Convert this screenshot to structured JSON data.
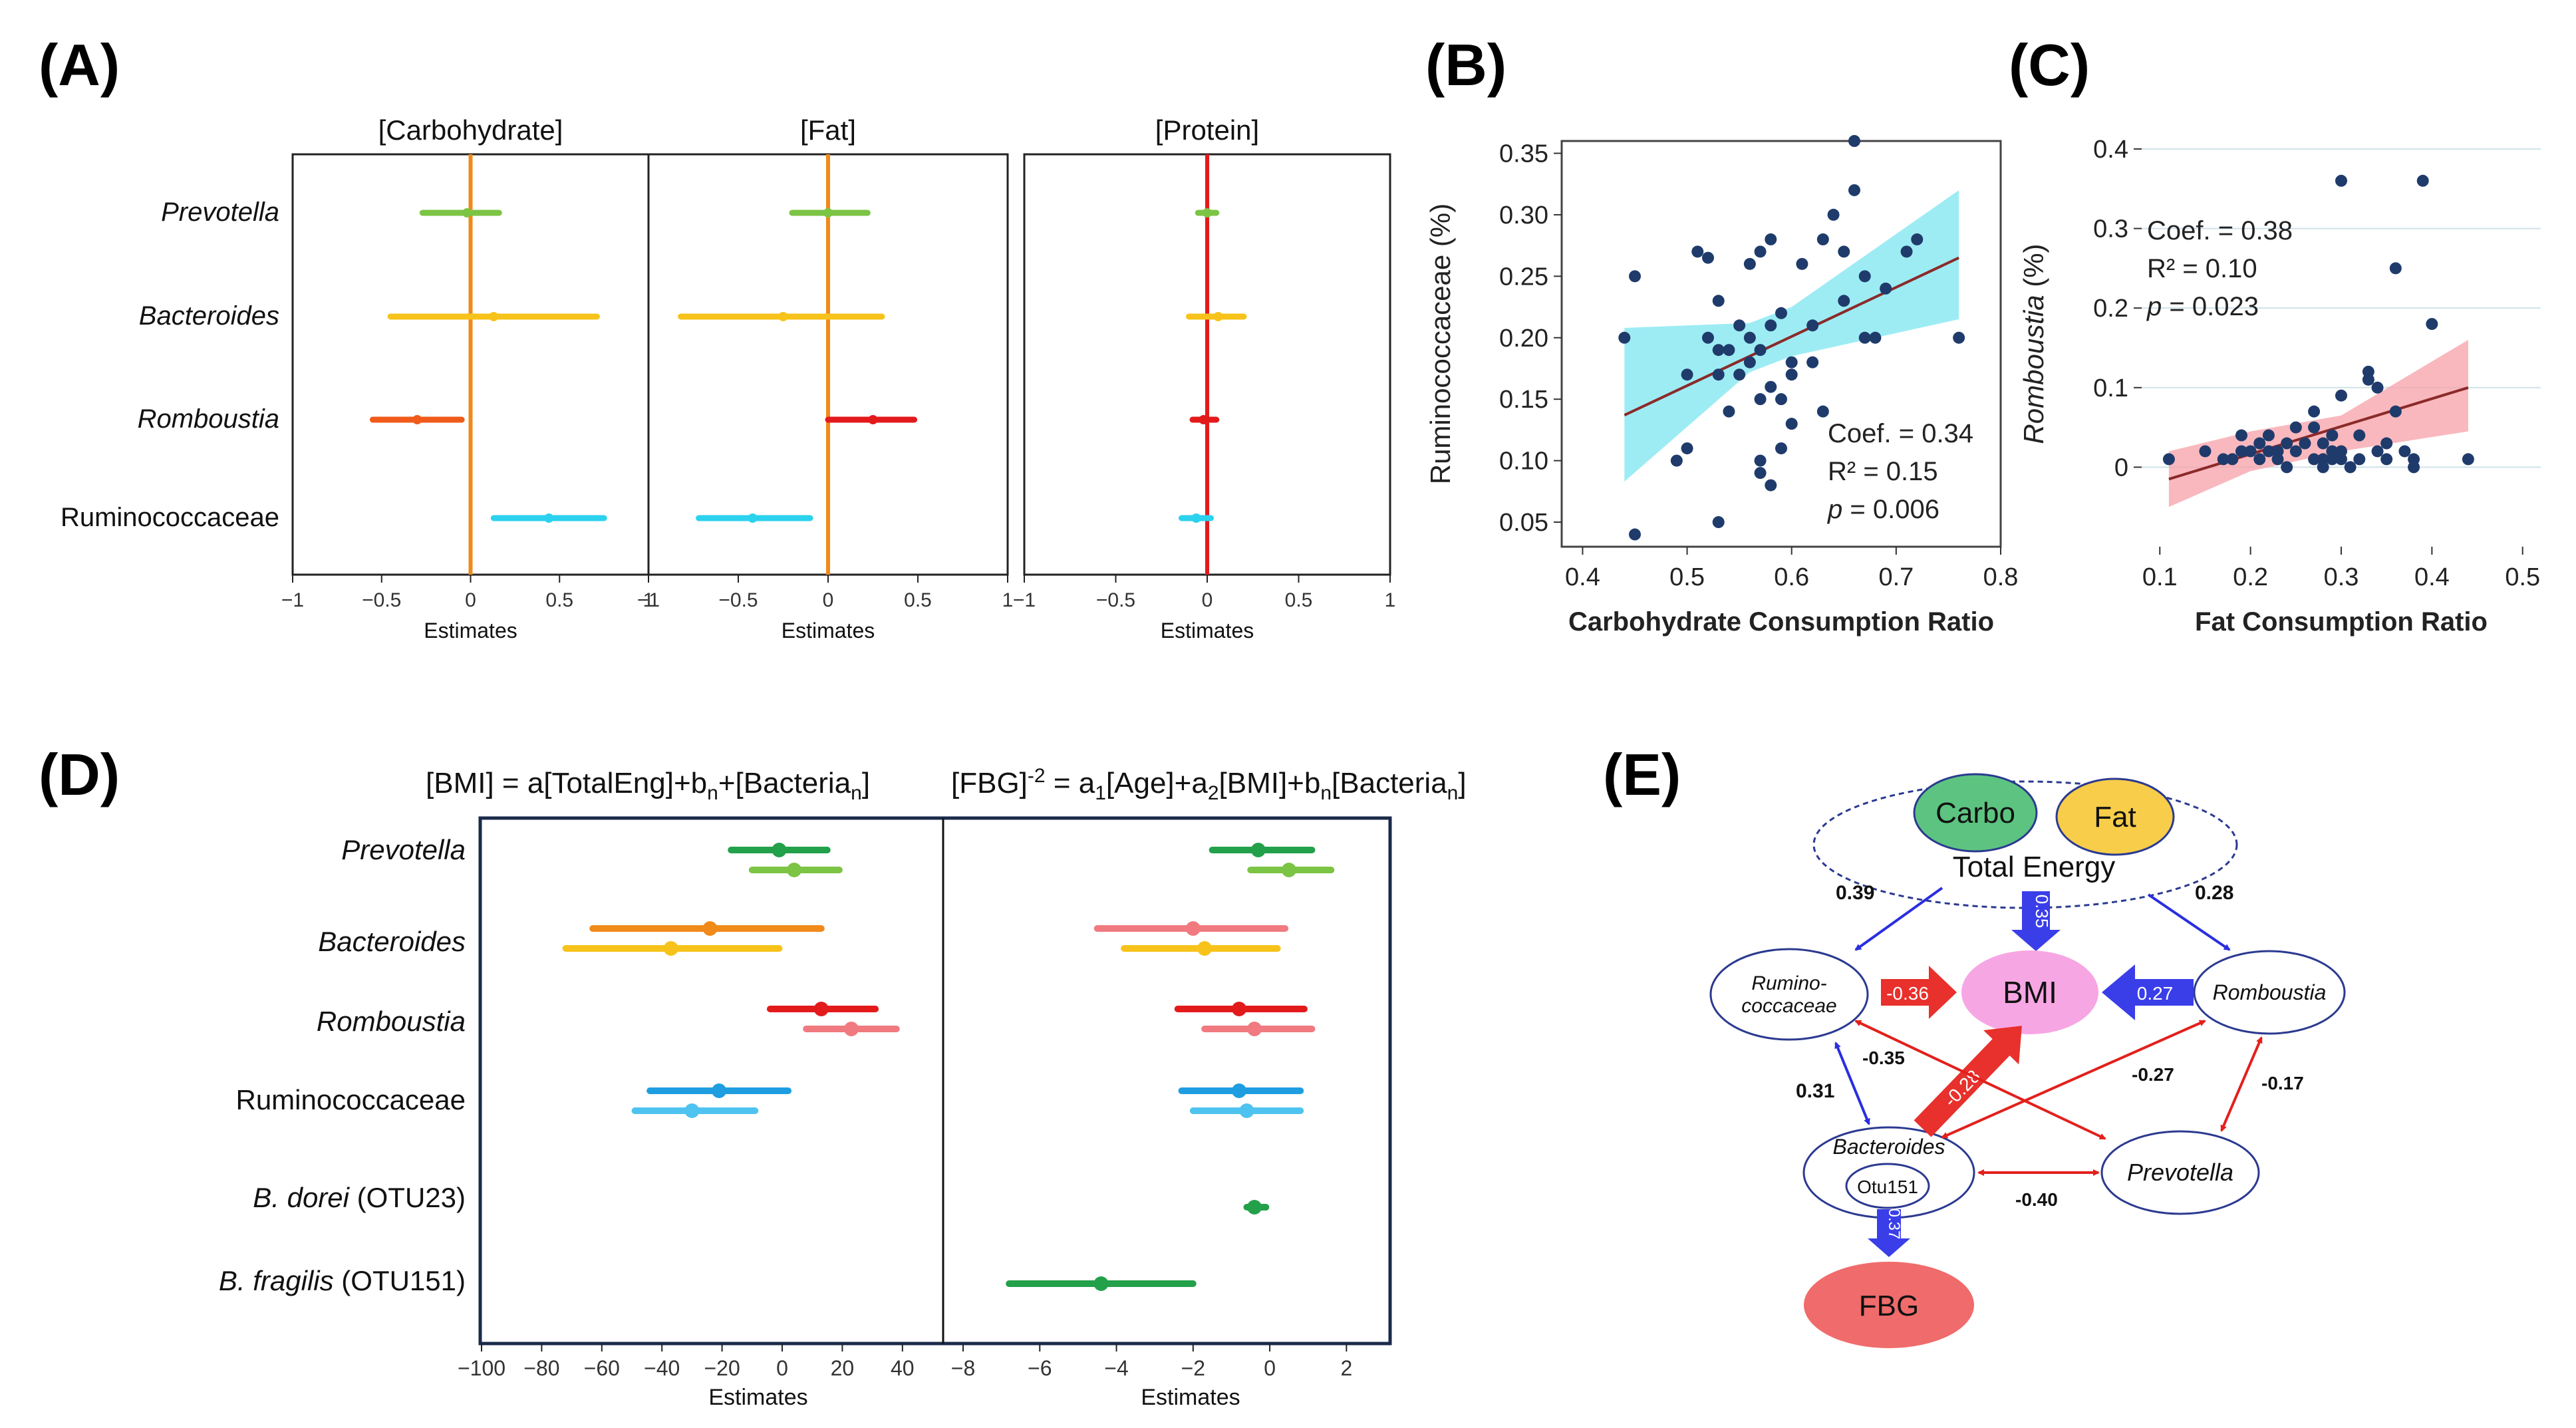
{
  "colors": {
    "green": "#23a04a",
    "lightgreen": "#7cc444",
    "orange": "#f08a1a",
    "gold": "#f7c31a",
    "red": "#e31a1c",
    "pink": "#f07a80",
    "blue": "#1e9ee0",
    "cyan": "#2ad2ee",
    "navy": "#1f3b6b",
    "arrow_blue": "#3a3ee8",
    "arrow_red": "#e8302c",
    "bmi_pink": "#f7a6e4",
    "carbo_green": "#5cc480",
    "fat_yellow": "#f7cd4a",
    "fbg_red": "#f06b6b"
  },
  "panels": {
    "a": "(A)",
    "b": "(B)",
    "c": "(C)",
    "d": "(D)",
    "e": "(E)"
  },
  "chart_data": [
    {
      "panel": "A",
      "type": "forest",
      "xlabel": "Estimates",
      "xlim": [
        -1,
        1
      ],
      "xticks": [
        "−1",
        "−0.5",
        "0",
        "0.5",
        "1"
      ],
      "categories": [
        "Prevotella",
        "Bacteroides",
        "Romboustia",
        "Ruminococcaceae"
      ],
      "subplots": [
        {
          "title": "[Carbohydrate]",
          "line_color": "#f08a1a",
          "rows": [
            {
              "est": -0.02,
              "lo": -0.27,
              "hi": 0.16,
              "color": "#7cc444"
            },
            {
              "est": 0.13,
              "lo": -0.45,
              "hi": 0.71,
              "color": "#f7c31a"
            },
            {
              "est": -0.3,
              "lo": -0.55,
              "hi": -0.05,
              "color": "#f05a1a"
            },
            {
              "est": 0.44,
              "lo": 0.13,
              "hi": 0.75,
              "color": "#2ad2ee"
            }
          ]
        },
        {
          "title": "[Fat]",
          "line_color": "#f08a1a",
          "rows": [
            {
              "est": 0.0,
              "lo": -0.2,
              "hi": 0.22,
              "color": "#7cc444"
            },
            {
              "est": -0.25,
              "lo": -0.82,
              "hi": 0.3,
              "color": "#f7c31a"
            },
            {
              "est": 0.25,
              "lo": 0.0,
              "hi": 0.48,
              "color": "#e31a1c"
            },
            {
              "est": -0.42,
              "lo": -0.72,
              "hi": -0.1,
              "color": "#2ad2ee"
            }
          ]
        },
        {
          "title": "[Protein]",
          "line_color": "#e31a1c",
          "rows": [
            {
              "est": 0.0,
              "lo": -0.05,
              "hi": 0.05,
              "color": "#7cc444"
            },
            {
              "est": 0.06,
              "lo": -0.1,
              "hi": 0.2,
              "color": "#f7c31a"
            },
            {
              "est": -0.02,
              "lo": -0.08,
              "hi": 0.05,
              "color": "#e31a1c"
            },
            {
              "est": -0.06,
              "lo": -0.14,
              "hi": 0.02,
              "color": "#2ad2ee"
            }
          ]
        }
      ]
    },
    {
      "panel": "B",
      "type": "scatter",
      "xlabel": "Carbohydrate Consumption Ratio",
      "ylabel": "Ruminococcaceae (%)",
      "xlim": [
        0.38,
        0.8
      ],
      "ylim": [
        0.03,
        0.36
      ],
      "xticks": [
        0.4,
        0.5,
        0.6,
        0.7,
        0.8
      ],
      "xtick_labels": [
        "0.4",
        "0.5",
        "0.6",
        "0.7",
        "0.8"
      ],
      "yticks": [
        0.05,
        0.1,
        0.15,
        0.2,
        0.25,
        0.3,
        0.35
      ],
      "ytick_labels": [
        "0.05",
        "0.10",
        "0.15",
        "0.20",
        "0.25",
        "0.30",
        "0.35"
      ],
      "fit": {
        "x": [
          0.44,
          0.76
        ],
        "y": [
          0.137,
          0.265
        ]
      },
      "band": {
        "x": [
          0.44,
          0.56,
          0.6,
          0.76
        ],
        "upper": [
          0.208,
          0.212,
          0.225,
          0.32
        ],
        "lower": [
          0.083,
          0.172,
          0.185,
          0.215
        ]
      },
      "annotations": [
        "Coef. = 0.34",
        "R² = 0.15",
        "p = 0.006"
      ],
      "points": [
        [
          0.44,
          0.2
        ],
        [
          0.45,
          0.04
        ],
        [
          0.45,
          0.25
        ],
        [
          0.49,
          0.1
        ],
        [
          0.5,
          0.11
        ],
        [
          0.5,
          0.17
        ],
        [
          0.51,
          0.27
        ],
        [
          0.52,
          0.265
        ],
        [
          0.52,
          0.2
        ],
        [
          0.53,
          0.05
        ],
        [
          0.53,
          0.17
        ],
        [
          0.53,
          0.23
        ],
        [
          0.53,
          0.19
        ],
        [
          0.54,
          0.19
        ],
        [
          0.54,
          0.14
        ],
        [
          0.55,
          0.21
        ],
        [
          0.55,
          0.17
        ],
        [
          0.56,
          0.18
        ],
        [
          0.56,
          0.2
        ],
        [
          0.56,
          0.26
        ],
        [
          0.57,
          0.19
        ],
        [
          0.57,
          0.15
        ],
        [
          0.57,
          0.1
        ],
        [
          0.57,
          0.09
        ],
        [
          0.57,
          0.27
        ],
        [
          0.58,
          0.28
        ],
        [
          0.58,
          0.08
        ],
        [
          0.58,
          0.21
        ],
        [
          0.58,
          0.16
        ],
        [
          0.59,
          0.11
        ],
        [
          0.59,
          0.15
        ],
        [
          0.59,
          0.22
        ],
        [
          0.6,
          0.18
        ],
        [
          0.6,
          0.17
        ],
        [
          0.6,
          0.13
        ],
        [
          0.61,
          0.26
        ],
        [
          0.62,
          0.18
        ],
        [
          0.62,
          0.21
        ],
        [
          0.63,
          0.28
        ],
        [
          0.63,
          0.14
        ],
        [
          0.64,
          0.3
        ],
        [
          0.65,
          0.27
        ],
        [
          0.65,
          0.23
        ],
        [
          0.66,
          0.32
        ],
        [
          0.66,
          0.36
        ],
        [
          0.67,
          0.2
        ],
        [
          0.67,
          0.25
        ],
        [
          0.68,
          0.2
        ],
        [
          0.69,
          0.24
        ],
        [
          0.71,
          0.27
        ],
        [
          0.72,
          0.28
        ],
        [
          0.76,
          0.2
        ]
      ]
    },
    {
      "panel": "C",
      "type": "scatter",
      "xlabel": "Fat Consumption Ratio",
      "ylabel": "Romboustia (%)",
      "xlim": [
        0.08,
        0.52
      ],
      "ylim": [
        -0.1,
        0.41
      ],
      "xticks": [
        0.1,
        0.2,
        0.3,
        0.4,
        0.5
      ],
      "xtick_labels": [
        "0.1",
        "0.2",
        "0.3",
        "0.4",
        "0.5"
      ],
      "yticks": [
        0,
        0.1,
        0.2,
        0.3,
        0.4
      ],
      "ytick_labels": [
        "0",
        "0.1",
        "0.2",
        "0.3",
        "0.4"
      ],
      "fit": {
        "x": [
          0.11,
          0.44
        ],
        "y": [
          -0.015,
          0.1
        ]
      },
      "band": {
        "x": [
          0.11,
          0.2,
          0.3,
          0.44
        ],
        "upper": [
          0.02,
          0.045,
          0.065,
          0.16
        ],
        "lower": [
          -0.05,
          -0.005,
          0.02,
          0.045
        ]
      },
      "annotations": [
        "Coef. = 0.38",
        "R² = 0.10",
        "p = 0.023"
      ],
      "points": [
        [
          0.11,
          0.01
        ],
        [
          0.15,
          0.02
        ],
        [
          0.17,
          0.01
        ],
        [
          0.18,
          0.01
        ],
        [
          0.19,
          0.04
        ],
        [
          0.19,
          0.02
        ],
        [
          0.2,
          0.02
        ],
        [
          0.21,
          0.03
        ],
        [
          0.21,
          0.01
        ],
        [
          0.22,
          0.04
        ],
        [
          0.22,
          0.02
        ],
        [
          0.23,
          0.01
        ],
        [
          0.23,
          0.02
        ],
        [
          0.24,
          0.03
        ],
        [
          0.24,
          0.0
        ],
        [
          0.25,
          0.05
        ],
        [
          0.25,
          0.02
        ],
        [
          0.26,
          0.03
        ],
        [
          0.27,
          0.05
        ],
        [
          0.27,
          0.01
        ],
        [
          0.27,
          0.07
        ],
        [
          0.28,
          0.03
        ],
        [
          0.28,
          0.01
        ],
        [
          0.28,
          0.0
        ],
        [
          0.29,
          0.02
        ],
        [
          0.29,
          0.01
        ],
        [
          0.29,
          0.04
        ],
        [
          0.3,
          0.36
        ],
        [
          0.3,
          0.02
        ],
        [
          0.3,
          0.09
        ],
        [
          0.3,
          0.01
        ],
        [
          0.31,
          0.0
        ],
        [
          0.32,
          0.01
        ],
        [
          0.32,
          0.04
        ],
        [
          0.33,
          0.12
        ],
        [
          0.33,
          0.11
        ],
        [
          0.34,
          0.1
        ],
        [
          0.34,
          0.02
        ],
        [
          0.35,
          0.03
        ],
        [
          0.35,
          0.01
        ],
        [
          0.36,
          0.25
        ],
        [
          0.36,
          0.07
        ],
        [
          0.37,
          0.02
        ],
        [
          0.38,
          0.0
        ],
        [
          0.38,
          0.01
        ],
        [
          0.39,
          0.36
        ],
        [
          0.4,
          0.18
        ],
        [
          0.44,
          0.01
        ]
      ]
    },
    {
      "panel": "D",
      "type": "forest",
      "xlabel": "Estimates",
      "categories": [
        "Prevotella",
        "Bacteroides",
        "Romboustia",
        "Ruminococcaceae",
        "B. dorei (OTU23)",
        "B. fragilis (OTU151)"
      ],
      "subplots": [
        {
          "title": "[BMI] = a[TotalEng]+bn+[Bacterian]",
          "xlim": [
            -100,
            50
          ],
          "xticks": [
            "−100",
            "−80",
            "−60",
            "−40",
            "−20",
            "0",
            "20",
            "40"
          ],
          "rows": [
            {
              "cat": 0,
              "est": -1,
              "lo": -17,
              "hi": 15,
              "color": "#23a04a"
            },
            {
              "cat": 0,
              "est": 4,
              "lo": -10,
              "hi": 19,
              "color": "#7cc444"
            },
            {
              "cat": 1,
              "est": -24,
              "lo": -63,
              "hi": 13,
              "color": "#f08a1a"
            },
            {
              "cat": 1,
              "est": -37,
              "lo": -72,
              "hi": -1,
              "color": "#f7c31a"
            },
            {
              "cat": 2,
              "est": 13,
              "lo": -4,
              "hi": 31,
              "color": "#e31a1c"
            },
            {
              "cat": 2,
              "est": 23,
              "lo": 8,
              "hi": 38,
              "color": "#f07a80"
            },
            {
              "cat": 3,
              "est": -21,
              "lo": -44,
              "hi": 2,
              "color": "#1e9ee0"
            },
            {
              "cat": 3,
              "est": -30,
              "lo": -49,
              "hi": -9,
              "color": "#4fc3f0"
            }
          ]
        },
        {
          "title": "[FBG]-2 = a1[Age]+a2[BMI]+bn[Bacterian]",
          "xlim": [
            -8,
            3
          ],
          "xticks": [
            "−8",
            "−6",
            "−4",
            "−2",
            "0",
            "2"
          ],
          "rows": [
            {
              "cat": 0,
              "est": -0.3,
              "lo": -1.5,
              "hi": 1.1,
              "color": "#23a04a"
            },
            {
              "cat": 0,
              "est": 0.5,
              "lo": -0.5,
              "hi": 1.6,
              "color": "#7cc444"
            },
            {
              "cat": 1,
              "est": -2.0,
              "lo": -4.5,
              "hi": 0.4,
              "color": "#f07a80"
            },
            {
              "cat": 1,
              "est": -1.7,
              "lo": -3.8,
              "hi": 0.2,
              "color": "#f7c31a"
            },
            {
              "cat": 2,
              "est": -0.8,
              "lo": -2.4,
              "hi": 0.9,
              "color": "#e31a1c"
            },
            {
              "cat": 2,
              "est": -0.4,
              "lo": -1.7,
              "hi": 1.1,
              "color": "#f07a80"
            },
            {
              "cat": 3,
              "est": -0.8,
              "lo": -2.3,
              "hi": 0.8,
              "color": "#1e9ee0"
            },
            {
              "cat": 3,
              "est": -0.6,
              "lo": -2.0,
              "hi": 0.8,
              "color": "#4fc3f0"
            },
            {
              "cat": 4,
              "est": -0.4,
              "lo": -0.6,
              "hi": -0.1,
              "color": "#23a04a"
            },
            {
              "cat": 5,
              "est": -4.4,
              "lo": -6.8,
              "hi": -2.0,
              "color": "#23a04a"
            }
          ]
        }
      ]
    },
    {
      "panel": "E",
      "type": "path-diagram",
      "nodes": {
        "carbo": "Carbo",
        "fat": "Fat",
        "total": "Total Energy",
        "rum1": "Rumino-",
        "rum2": "coccaceae",
        "bmi": "BMI",
        "rom": "Romboustia",
        "bac": "Bacteroides",
        "otu": "Otu151",
        "prev": "Prevotella",
        "fbg": "FBG"
      },
      "edges": {
        "te_rum": "0.39",
        "te_bmi": "0.35",
        "te_rom": "0.28",
        "rum_bmi": "-0.36",
        "rom_bmi": "0.27",
        "rum_prev": "-0.35",
        "bac_bmi": "-0.28",
        "bac_rom": "-0.27",
        "rom_prev": "-0.17",
        "rum_bac": "0.31",
        "bac_prev": "-0.40",
        "otu_fbg": "0.37"
      }
    }
  ]
}
